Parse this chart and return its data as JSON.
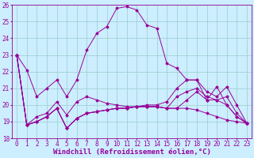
{
  "xlabel": "Windchill (Refroidissement éolien,°C)",
  "xlim": [
    -0.5,
    23.5
  ],
  "ylim": [
    18,
    26
  ],
  "xticks": [
    0,
    1,
    2,
    3,
    4,
    5,
    6,
    7,
    8,
    9,
    10,
    11,
    12,
    13,
    14,
    15,
    16,
    17,
    18,
    19,
    20,
    21,
    22,
    23
  ],
  "yticks": [
    18,
    19,
    20,
    21,
    22,
    23,
    24,
    25,
    26
  ],
  "line_color": "#990099",
  "bg_color": "#cceeff",
  "grid_color": "#99cccc",
  "lines": [
    [
      23.0,
      22.1,
      20.5,
      21.0,
      21.5,
      20.5,
      21.5,
      23.3,
      24.3,
      24.7,
      25.8,
      25.9,
      25.7,
      24.8,
      24.6,
      22.5,
      22.2,
      21.5,
      21.5,
      20.3,
      21.1,
      20.0,
      19.3,
      18.9
    ],
    [
      23.0,
      18.8,
      19.3,
      19.5,
      20.2,
      19.4,
      20.2,
      20.5,
      20.3,
      20.1,
      20.0,
      19.9,
      19.9,
      20.0,
      20.0,
      20.2,
      21.0,
      21.5,
      21.5,
      20.8,
      20.5,
      21.1,
      20.0,
      18.9
    ],
    [
      23.0,
      18.8,
      19.0,
      19.3,
      19.8,
      18.6,
      19.2,
      19.5,
      19.6,
      19.7,
      19.8,
      19.8,
      19.9,
      19.9,
      19.9,
      19.8,
      19.8,
      19.8,
      19.7,
      19.5,
      19.3,
      19.1,
      19.0,
      18.9
    ],
    [
      23.0,
      18.8,
      19.0,
      19.3,
      19.8,
      18.6,
      19.2,
      19.5,
      19.6,
      19.7,
      19.8,
      19.8,
      19.9,
      19.9,
      19.9,
      19.8,
      19.8,
      20.3,
      20.8,
      20.3,
      20.3,
      20.5,
      19.5,
      18.9
    ],
    [
      23.0,
      18.8,
      19.0,
      19.3,
      19.8,
      18.6,
      19.2,
      19.5,
      19.6,
      19.7,
      19.8,
      19.8,
      19.9,
      19.9,
      19.9,
      19.8,
      20.5,
      20.8,
      21.0,
      20.5,
      20.3,
      20.0,
      19.3,
      18.9
    ]
  ],
  "font_size": 6.5,
  "tick_font_size": 5.5
}
